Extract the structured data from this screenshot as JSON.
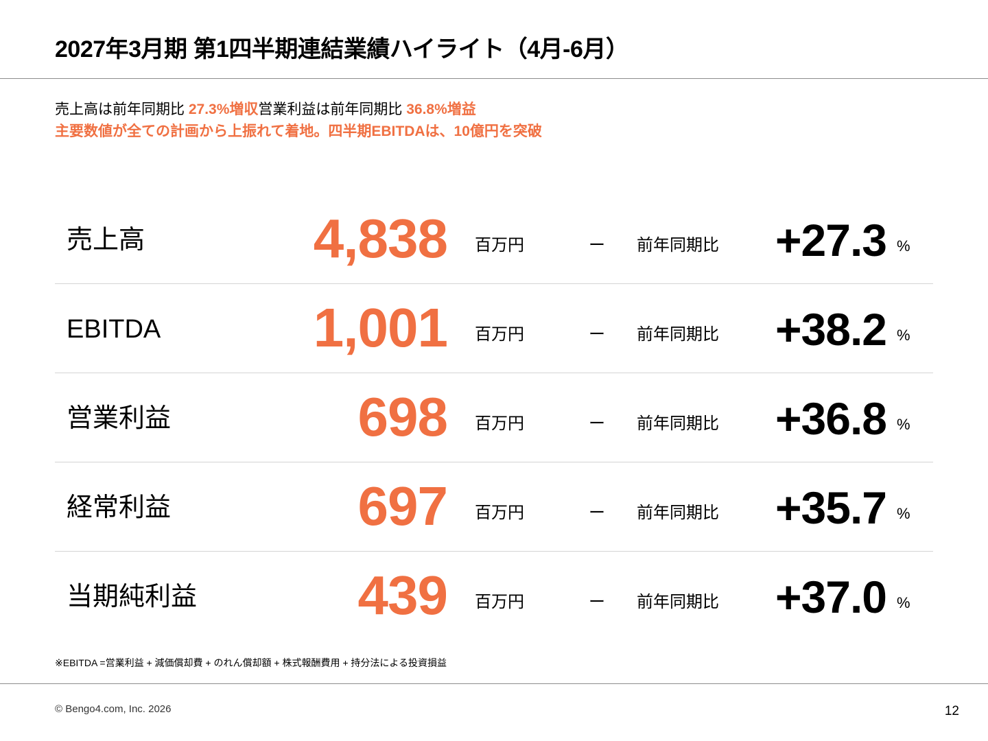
{
  "title": "2027年3月期 第1四半期連結業績ハイライト（4月-6月）",
  "summary": {
    "line1_prefix": "売上高は前年同期比 ",
    "line1_sales_growth": "27.3%増収",
    "line1_middle": "営業利益は前年同期比 ",
    "line1_op_growth": "36.8%増益",
    "line2": "主要数値が全ての計画から上振れて着地。四半期EBITDAは、10億円を突破"
  },
  "accent_color": "#f07042",
  "metrics": [
    {
      "label": "売上高",
      "value": "4,838",
      "unit": "百万円",
      "dash": "ー",
      "yoy_label": "前年同期比",
      "growth": "+27.3",
      "pct": "%"
    },
    {
      "label": "EBITDA",
      "value": "1,001",
      "unit": "百万円",
      "dash": "ー",
      "yoy_label": "前年同期比",
      "growth": "+38.2",
      "pct": "%"
    },
    {
      "label": "営業利益",
      "value": "698",
      "unit": "百万円",
      "dash": "ー",
      "yoy_label": "前年同期比",
      "growth": "+36.8",
      "pct": "%"
    },
    {
      "label": "経常利益",
      "value": "697",
      "unit": "百万円",
      "dash": "ー",
      "yoy_label": "前年同期比",
      "growth": "+35.7",
      "pct": "%"
    },
    {
      "label": "当期純利益",
      "value": "439",
      "unit": "百万円",
      "dash": "ー",
      "yoy_label": "前年同期比",
      "growth": "+37.0",
      "pct": "%"
    }
  ],
  "footnote": "※EBITDA =営業利益 + 減価償却費 + のれん償却額 + 株式報酬費用 + 持分法による投資損益",
  "copyright": "© Bengo4.com, Inc. 2026",
  "page_number": "12"
}
